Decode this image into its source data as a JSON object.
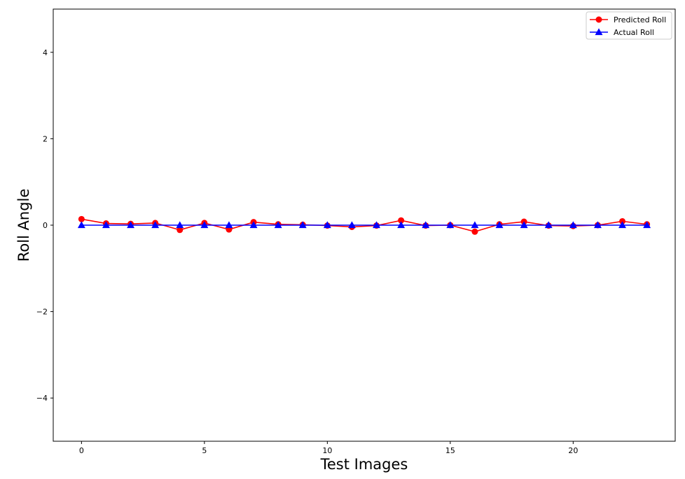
{
  "chart_data": {
    "type": "line",
    "title": "",
    "xlabel": "Test Images",
    "ylabel": "Roll Angle",
    "xlim": [
      -1.15,
      24.15
    ],
    "ylim": [
      -5,
      5
    ],
    "x_ticks": [
      0,
      5,
      10,
      15,
      20
    ],
    "y_ticks": [
      -4,
      -2,
      0,
      2,
      4
    ],
    "x_tick_labels": [
      "0",
      "5",
      "10",
      "15",
      "20"
    ],
    "y_tick_labels": [
      "−4",
      "−2",
      "0",
      "2",
      "4"
    ],
    "grid": false,
    "legend_position": "top-right",
    "x": [
      0,
      1,
      2,
      3,
      4,
      5,
      6,
      7,
      8,
      9,
      10,
      11,
      12,
      13,
      14,
      15,
      16,
      17,
      18,
      19,
      20,
      21,
      22,
      23
    ],
    "series": [
      {
        "name": "Predicted Roll",
        "color": "#ff0000",
        "marker": "circle",
        "values": [
          0.14,
          0.04,
          0.03,
          0.05,
          -0.11,
          0.05,
          -0.1,
          0.07,
          0.02,
          0.01,
          -0.01,
          -0.04,
          -0.01,
          0.11,
          -0.01,
          0.0,
          -0.15,
          0.02,
          0.08,
          -0.01,
          -0.02,
          0.0,
          0.09,
          0.02
        ]
      },
      {
        "name": "Actual Roll",
        "color": "#0000ff",
        "marker": "triangle",
        "values": [
          0,
          0,
          0,
          0,
          0,
          0,
          0,
          0,
          0,
          0,
          0,
          0,
          0,
          0,
          0,
          0,
          0,
          0,
          0,
          0,
          0,
          0,
          0,
          0
        ]
      }
    ]
  }
}
